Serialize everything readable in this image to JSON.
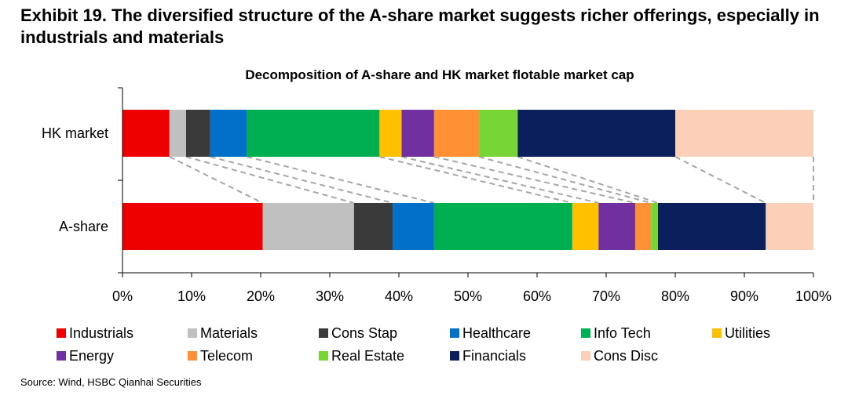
{
  "exhibit": {
    "title": "Exhibit 19. The diversified structure of the A-share market suggests richer offerings, especially in industrials and materials"
  },
  "source": "Source: Wind, HSBC Qianhai Securities",
  "chart_data": {
    "type": "bar",
    "orientation": "horizontal",
    "stacked": true,
    "title": "Decomposition of A-share and HK market flotable market cap",
    "categories": [
      "HK market",
      "A-share"
    ],
    "series": [
      {
        "name": "Industrials",
        "color": "#ee0000",
        "values": [
          6.8,
          20.3
        ]
      },
      {
        "name": "Materials",
        "color": "#c0c0c0",
        "values": [
          2.4,
          13.2
        ]
      },
      {
        "name": "Cons Stap",
        "color": "#3a3a3a",
        "values": [
          3.5,
          5.6
        ]
      },
      {
        "name": "Healthcare",
        "color": "#0070c8",
        "values": [
          5.3,
          6.0
        ]
      },
      {
        "name": "Info Tech",
        "color": "#00b050",
        "values": [
          19.2,
          20.0
        ]
      },
      {
        "name": "Utilities",
        "color": "#ffc000",
        "values": [
          3.2,
          3.8
        ]
      },
      {
        "name": "Energy",
        "color": "#7030a0",
        "values": [
          4.7,
          5.3
        ]
      },
      {
        "name": "Telecom",
        "color": "#ff9033",
        "values": [
          6.5,
          2.3
        ]
      },
      {
        "name": "Real Estate",
        "color": "#77d535",
        "values": [
          5.6,
          1.0
        ]
      },
      {
        "name": "Financials",
        "color": "#0b1f5c",
        "values": [
          22.8,
          15.6
        ]
      },
      {
        "name": "Cons Disc",
        "color": "#fcd0b8",
        "values": [
          20.0,
          6.9
        ]
      }
    ],
    "xlim": [
      0,
      100
    ],
    "ticks": [
      "0%",
      "10%",
      "20%",
      "30%",
      "40%",
      "50%",
      "60%",
      "70%",
      "80%",
      "90%",
      "100%"
    ],
    "xlabel": "",
    "ylabel": "",
    "grid": false,
    "connectors": "dashed",
    "legend_position": "bottom"
  }
}
